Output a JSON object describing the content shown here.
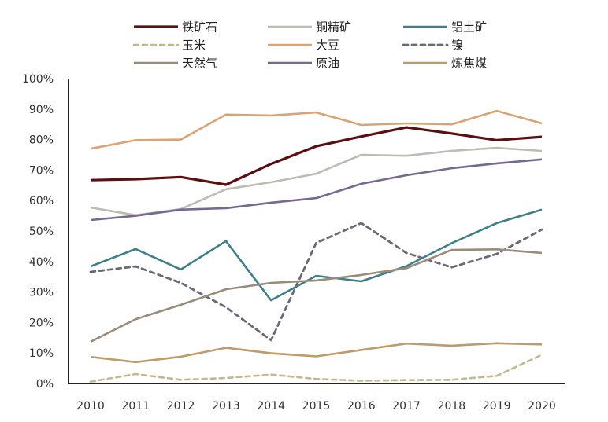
{
  "chart_data": {
    "type": "line",
    "title": "",
    "xlabel": "",
    "ylabel": "",
    "x": [
      "2010",
      "2011",
      "2012",
      "2013",
      "2014",
      "2015",
      "2016",
      "2017",
      "2018",
      "2019",
      "2020"
    ],
    "ylim": [
      0,
      100
    ],
    "yticks": [
      0,
      10,
      20,
      30,
      40,
      50,
      60,
      70,
      80,
      90,
      100
    ],
    "ytick_format": "percent",
    "grid": false,
    "legend_position": "top",
    "series": [
      {
        "name": "铁矿石",
        "color": "#5c0f12",
        "dash": false,
        "width": 3.2,
        "values": [
          66.7,
          67.0,
          67.7,
          65.2,
          72.0,
          77.8,
          81.0,
          84.0,
          82.0,
          79.8,
          80.9
        ]
      },
      {
        "name": "铜精矿",
        "color": "#bdbcb3",
        "dash": false,
        "width": 2.6,
        "values": [
          57.7,
          55.2,
          57.2,
          63.7,
          66.0,
          68.8,
          75.0,
          74.7,
          76.3,
          77.3,
          76.3
        ]
      },
      {
        "name": "铝土矿",
        "color": "#3d8089",
        "dash": false,
        "width": 2.6,
        "values": [
          38.4,
          44.1,
          37.4,
          46.7,
          27.3,
          35.3,
          33.5,
          38.5,
          46.0,
          52.6,
          57.0
        ]
      },
      {
        "name": "玉米",
        "color": "#c2b98d",
        "dash": true,
        "width": 2.6,
        "values": [
          0.6,
          3.1,
          1.2,
          1.8,
          2.9,
          1.5,
          0.9,
          1.1,
          1.2,
          2.5,
          9.4
        ]
      },
      {
        "name": "大豆",
        "color": "#dca272",
        "dash": false,
        "width": 2.6,
        "values": [
          77.0,
          79.8,
          80.0,
          88.2,
          87.9,
          88.9,
          84.8,
          85.3,
          85.0,
          89.4,
          85.3
        ]
      },
      {
        "name": "镍",
        "color": "#6b6878",
        "dash": true,
        "width": 2.8,
        "values": [
          36.6,
          38.4,
          33.0,
          25.0,
          14.2,
          46.1,
          52.6,
          42.8,
          38.1,
          42.5,
          50.5
        ]
      },
      {
        "name": "天然气",
        "color": "#9b8b7b",
        "dash": false,
        "width": 2.6,
        "values": [
          13.7,
          21.1,
          25.8,
          30.9,
          33.0,
          33.8,
          35.6,
          37.8,
          43.8,
          44.0,
          42.8
        ]
      },
      {
        "name": "原油",
        "color": "#76688f",
        "dash": false,
        "width": 2.6,
        "values": [
          53.6,
          55.0,
          57.0,
          57.5,
          59.3,
          60.8,
          65.5,
          68.3,
          70.6,
          72.2,
          73.5
        ]
      },
      {
        "name": "炼焦煤",
        "color": "#c09a67",
        "dash": false,
        "width": 2.6,
        "values": [
          8.7,
          7.0,
          8.8,
          11.7,
          9.9,
          8.9,
          11.0,
          13.1,
          12.4,
          13.2,
          12.8
        ]
      }
    ]
  }
}
